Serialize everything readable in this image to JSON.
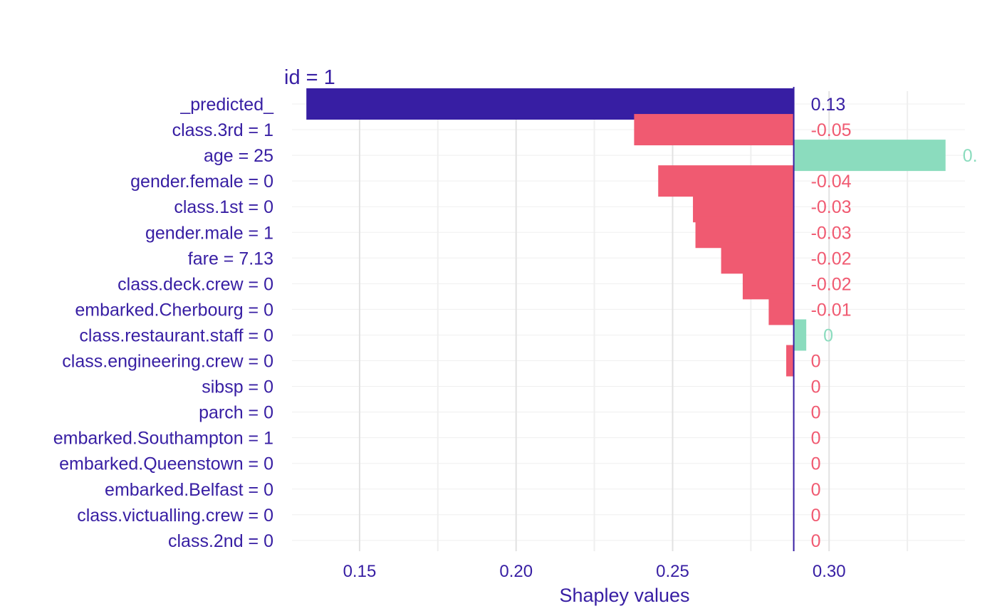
{
  "chart_data": {
    "type": "bar",
    "title": "id = 1",
    "xlabel": "Shapley values",
    "ylabel": "",
    "baseline": 0.2887,
    "xlim": [
      0.1284,
      0.3434
    ],
    "x_ticks": [
      {
        "value": 0.15,
        "label": "0.15"
      },
      {
        "value": 0.2,
        "label": "0.20"
      },
      {
        "value": 0.25,
        "label": "0.25"
      },
      {
        "value": 0.3,
        "label": "0.30"
      }
    ],
    "bars": [
      {
        "label": "_predicted_",
        "start": 0.133,
        "end": 0.2887,
        "value_label": "0.13",
        "kind": "predicted"
      },
      {
        "label": "class.3rd = 1",
        "start": 0.2377,
        "end": 0.2887,
        "value_label": "-0.05",
        "kind": "negative"
      },
      {
        "label": "age = 25",
        "start": 0.2887,
        "end": 0.3372,
        "value_label": "0.",
        "kind": "positive"
      },
      {
        "label": "gender.female = 0",
        "start": 0.2454,
        "end": 0.2887,
        "value_label": "-0.04",
        "kind": "negative"
      },
      {
        "label": "class.1st = 0",
        "start": 0.2565,
        "end": 0.2887,
        "value_label": "-0.03",
        "kind": "negative"
      },
      {
        "label": "gender.male = 1",
        "start": 0.2573,
        "end": 0.2887,
        "value_label": "-0.03",
        "kind": "negative"
      },
      {
        "label": "fare = 7.13",
        "start": 0.2655,
        "end": 0.2887,
        "value_label": "-0.02",
        "kind": "negative"
      },
      {
        "label": "class.deck.crew = 0",
        "start": 0.2724,
        "end": 0.2887,
        "value_label": "-0.02",
        "kind": "negative"
      },
      {
        "label": "embarked.Cherbourg = 0",
        "start": 0.2807,
        "end": 0.2887,
        "value_label": "-0.01",
        "kind": "negative"
      },
      {
        "label": "class.restaurant.staff = 0",
        "start": 0.2887,
        "end": 0.2927,
        "value_label": "0",
        "kind": "positive"
      },
      {
        "label": "class.engineering.crew = 0",
        "start": 0.2863,
        "end": 0.2887,
        "value_label": "0",
        "kind": "negative"
      },
      {
        "label": "sibsp = 0",
        "start": 0.2887,
        "end": 0.2887,
        "value_label": "0",
        "kind": "negative"
      },
      {
        "label": "parch = 0",
        "start": 0.2887,
        "end": 0.2887,
        "value_label": "0",
        "kind": "negative"
      },
      {
        "label": "embarked.Southampton = 1",
        "start": 0.2887,
        "end": 0.2887,
        "value_label": "0",
        "kind": "negative"
      },
      {
        "label": "embarked.Queenstown = 0",
        "start": 0.2887,
        "end": 0.2887,
        "value_label": "0",
        "kind": "negative"
      },
      {
        "label": "embarked.Belfast = 0",
        "start": 0.2887,
        "end": 0.2887,
        "value_label": "0",
        "kind": "negative"
      },
      {
        "label": "class.victualling.crew = 0",
        "start": 0.2887,
        "end": 0.2887,
        "value_label": "0",
        "kind": "negative"
      },
      {
        "label": "class.2nd = 0",
        "start": 0.2887,
        "end": 0.2887,
        "value_label": "0",
        "kind": "negative"
      }
    ],
    "colors": {
      "predicted": "#371ea3",
      "negative": "#f05a71",
      "positive": "#8bdcbe",
      "baseline": "#371ea3",
      "text": "#371ea3",
      "grid_major": "#e2e2e2",
      "grid_minor": "#efefef"
    },
    "grid": true,
    "legend": "none"
  }
}
